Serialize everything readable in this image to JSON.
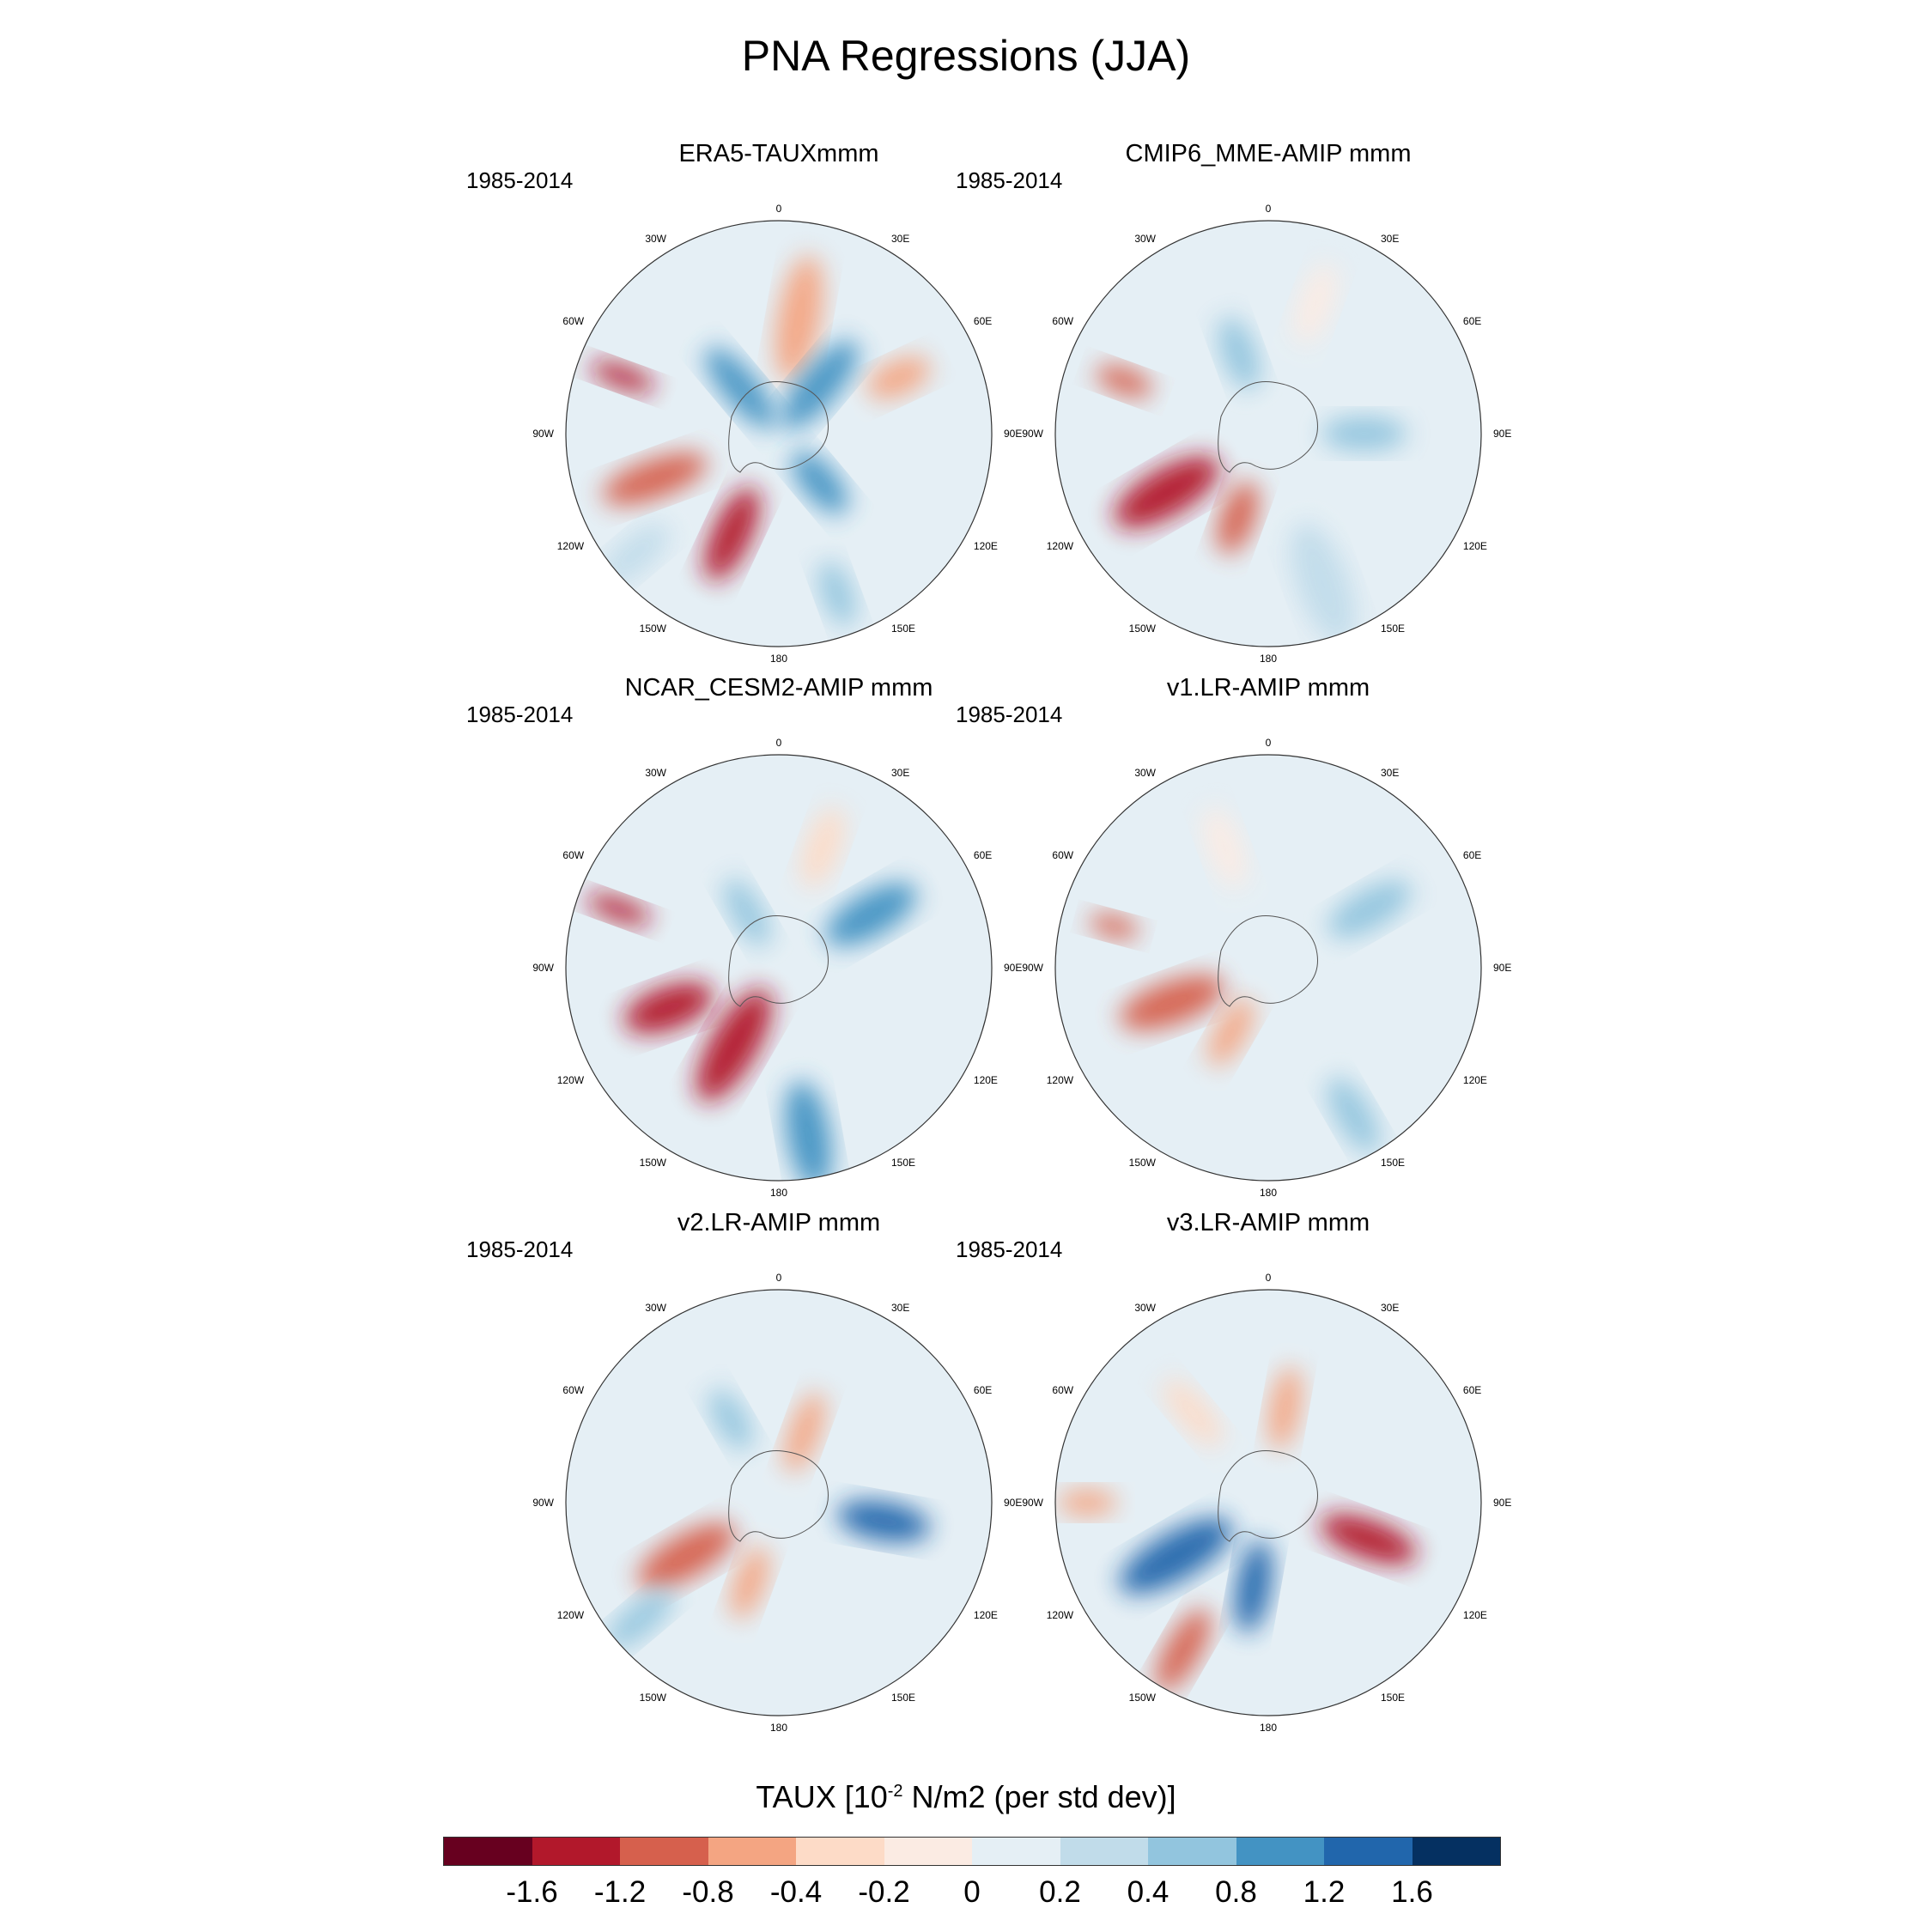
{
  "title": "PNA Regressions (JJA)",
  "panels": [
    {
      "title": "ERA5-TAUXmmm",
      "period": "1985-2014"
    },
    {
      "title": "CMIP6_MME-AMIP  mmm",
      "period": "1985-2014"
    },
    {
      "title": "NCAR_CESM2-AMIP  mmm",
      "period": "1985-2014"
    },
    {
      "title": "v1.LR-AMIP  mmm",
      "period": "1985-2014"
    },
    {
      "title": "v2.LR-AMIP  mmm",
      "period": "1985-2014"
    },
    {
      "title": "v3.LR-AMIP  mmm",
      "period": "1985-2014"
    }
  ],
  "longitude_labels": [
    "0",
    "30E",
    "60E",
    "90E",
    "120E",
    "150E",
    "180",
    "150W",
    "120W",
    "90W",
    "60W",
    "30W"
  ],
  "colorbar": {
    "title_prefix": "TAUX [10",
    "title_exp": "-2",
    "title_suffix": " N/m2 (per std dev)]",
    "colors": [
      "#67001f",
      "#b2182b",
      "#d6604d",
      "#f4a582",
      "#fddbc7",
      "#fbebe3",
      "#e5eff5",
      "#c1dcea",
      "#92c5de",
      "#4393c3",
      "#2166ac",
      "#053061"
    ],
    "tick_labels": [
      "-1.6",
      "-1.2",
      "-0.8",
      "-0.4",
      "-0.2",
      "0",
      "0.2",
      "0.4",
      "0.8",
      "1.2",
      "1.6"
    ]
  },
  "chart_data": {
    "type": "heatmap",
    "title": "PNA Regressions (JJA)",
    "variable": "TAUX",
    "units": "10^-2 N/m2 (per std dev)",
    "projection": "south polar stereographic",
    "contour_levels": [
      -1.6,
      -1.2,
      -0.8,
      -0.4,
      -0.2,
      0,
      0.2,
      0.4,
      0.8,
      1.2,
      1.6
    ],
    "panels": [
      {
        "name": "ERA5-TAUXmmm",
        "period": "1985-2014",
        "features": [
          {
            "lon": -155,
            "colat": 0.52,
            "value": -1.3,
            "rx": 0.24,
            "ry": 0.09
          },
          {
            "lon": -110,
            "colat": 0.62,
            "value": -1.0,
            "rx": 0.26,
            "ry": 0.09
          },
          {
            "lon": -70,
            "colat": 0.78,
            "value": -1.4,
            "rx": 0.16,
            "ry": 0.05
          },
          {
            "lon": 10,
            "colat": 0.55,
            "value": -0.5,
            "rx": 0.3,
            "ry": 0.1
          },
          {
            "lon": 65,
            "colat": 0.62,
            "value": -0.6,
            "rx": 0.16,
            "ry": 0.08
          },
          {
            "lon": 40,
            "colat": 0.3,
            "value": 1.1,
            "rx": 0.26,
            "ry": 0.09
          },
          {
            "lon": -40,
            "colat": 0.28,
            "value": 1.0,
            "rx": 0.24,
            "ry": 0.08
          },
          {
            "lon": 140,
            "colat": 0.3,
            "value": 0.8,
            "rx": 0.18,
            "ry": 0.08
          },
          {
            "lon": 160,
            "colat": 0.8,
            "value": 0.6,
            "rx": 0.16,
            "ry": 0.07
          },
          {
            "lon": -130,
            "colat": 0.88,
            "value": 0.3,
            "rx": 0.2,
            "ry": 0.08
          }
        ]
      },
      {
        "name": "CMIP6_MME-AMIP  mmm",
        "period": "1985-2014",
        "features": [
          {
            "lon": -120,
            "colat": 0.55,
            "value": -1.4,
            "rx": 0.28,
            "ry": 0.11
          },
          {
            "lon": -160,
            "colat": 0.42,
            "value": -1.0,
            "rx": 0.18,
            "ry": 0.08
          },
          {
            "lon": -70,
            "colat": 0.72,
            "value": -1.2,
            "rx": 0.14,
            "ry": 0.06
          },
          {
            "lon": -20,
            "colat": 0.4,
            "value": 0.6,
            "rx": 0.18,
            "ry": 0.08
          },
          {
            "lon": 90,
            "colat": 0.45,
            "value": 0.4,
            "rx": 0.2,
            "ry": 0.08
          },
          {
            "lon": 160,
            "colat": 0.75,
            "value": 0.3,
            "rx": 0.3,
            "ry": 0.12
          },
          {
            "lon": 20,
            "colat": 0.65,
            "value": -0.2,
            "rx": 0.2,
            "ry": 0.08
          }
        ]
      },
      {
        "name": "NCAR_CESM2-AMIP  mmm",
        "period": "1985-2014",
        "features": [
          {
            "lon": -150,
            "colat": 0.42,
            "value": -1.6,
            "rx": 0.3,
            "ry": 0.11
          },
          {
            "lon": -110,
            "colat": 0.55,
            "value": -1.3,
            "rx": 0.22,
            "ry": 0.1
          },
          {
            "lon": -70,
            "colat": 0.8,
            "value": -1.5,
            "rx": 0.16,
            "ry": 0.05
          },
          {
            "lon": 60,
            "colat": 0.5,
            "value": 1.0,
            "rx": 0.24,
            "ry": 0.1
          },
          {
            "lon": 170,
            "colat": 0.8,
            "value": 0.8,
            "rx": 0.26,
            "ry": 0.1
          },
          {
            "lon": -30,
            "colat": 0.3,
            "value": 0.6,
            "rx": 0.18,
            "ry": 0.07
          },
          {
            "lon": 20,
            "colat": 0.6,
            "value": -0.3,
            "rx": 0.2,
            "ry": 0.08
          }
        ]
      },
      {
        "name": "v1.LR-AMIP  mmm",
        "period": "1985-2014",
        "features": [
          {
            "lon": -110,
            "colat": 0.48,
            "value": -1.1,
            "rx": 0.26,
            "ry": 0.1
          },
          {
            "lon": -150,
            "colat": 0.35,
            "value": -0.6,
            "rx": 0.18,
            "ry": 0.07
          },
          {
            "lon": -75,
            "colat": 0.75,
            "value": -0.9,
            "rx": 0.12,
            "ry": 0.05
          },
          {
            "lon": 60,
            "colat": 0.55,
            "value": 0.6,
            "rx": 0.22,
            "ry": 0.09
          },
          {
            "lon": 150,
            "colat": 0.8,
            "value": 0.6,
            "rx": 0.2,
            "ry": 0.08
          },
          {
            "lon": -20,
            "colat": 0.6,
            "value": -0.2,
            "rx": 0.2,
            "ry": 0.08
          }
        ]
      },
      {
        "name": "v2.LR-AMIP  mmm",
        "period": "1985-2014",
        "features": [
          {
            "lon": -120,
            "colat": 0.5,
            "value": -1.0,
            "rx": 0.26,
            "ry": 0.1
          },
          {
            "lon": -160,
            "colat": 0.4,
            "value": -0.8,
            "rx": 0.18,
            "ry": 0.07
          },
          {
            "lon": 100,
            "colat": 0.5,
            "value": 1.2,
            "rx": 0.22,
            "ry": 0.09
          },
          {
            "lon": 20,
            "colat": 0.35,
            "value": -0.5,
            "rx": 0.2,
            "ry": 0.07
          },
          {
            "lon": -30,
            "colat": 0.45,
            "value": 0.5,
            "rx": 0.16,
            "ry": 0.07
          },
          {
            "lon": -130,
            "colat": 0.85,
            "value": 0.5,
            "rx": 0.2,
            "ry": 0.07
          }
        ]
      },
      {
        "name": "v3.LR-AMIP  mmm",
        "period": "1985-2014",
        "features": [
          {
            "lon": -120,
            "colat": 0.5,
            "value": 1.5,
            "rx": 0.3,
            "ry": 0.11
          },
          {
            "lon": -170,
            "colat": 0.4,
            "value": 1.2,
            "rx": 0.22,
            "ry": 0.08
          },
          {
            "lon": 110,
            "colat": 0.5,
            "value": -1.4,
            "rx": 0.24,
            "ry": 0.09
          },
          {
            "lon": -150,
            "colat": 0.8,
            "value": -0.9,
            "rx": 0.22,
            "ry": 0.08
          },
          {
            "lon": -90,
            "colat": 0.85,
            "value": -0.8,
            "rx": 0.14,
            "ry": 0.06
          },
          {
            "lon": 10,
            "colat": 0.45,
            "value": -0.5,
            "rx": 0.2,
            "ry": 0.07
          },
          {
            "lon": -40,
            "colat": 0.55,
            "value": -0.4,
            "rx": 0.2,
            "ry": 0.07
          }
        ]
      }
    ]
  }
}
